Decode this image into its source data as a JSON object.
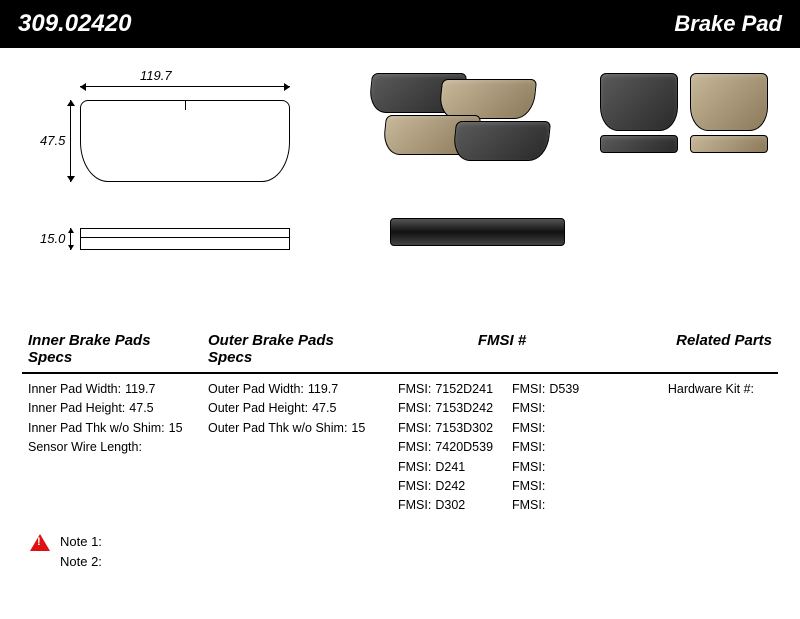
{
  "header": {
    "part_number": "309.02420",
    "title": "Brake Pad"
  },
  "dimensions": {
    "width": "119.7",
    "height": "47.5",
    "thickness": "15.0"
  },
  "sections": {
    "inner_header": "Inner Brake Pads Specs",
    "outer_header": "Outer Brake Pads Specs",
    "fmsi_header": "FMSI #",
    "related_header": "Related Parts"
  },
  "inner_specs": [
    {
      "label": "Inner Pad Width:",
      "value": "119.7"
    },
    {
      "label": "Inner Pad Height:",
      "value": "47.5"
    },
    {
      "label": "Inner Pad Thk w/o Shim:",
      "value": "15"
    },
    {
      "label": "Sensor Wire Length:",
      "value": ""
    }
  ],
  "outer_specs": [
    {
      "label": "Outer Pad Width:",
      "value": "119.7"
    },
    {
      "label": "Outer Pad Height:",
      "value": "47.5"
    },
    {
      "label": "Outer Pad Thk w/o Shim:",
      "value": "15"
    }
  ],
  "fmsi_left": [
    {
      "label": "FMSI:",
      "value": "7152D241"
    },
    {
      "label": "FMSI:",
      "value": "7153D242"
    },
    {
      "label": "FMSI:",
      "value": "7153D302"
    },
    {
      "label": "FMSI:",
      "value": "7420D539"
    },
    {
      "label": "FMSI:",
      "value": "D241"
    },
    {
      "label": "FMSI:",
      "value": "D242"
    },
    {
      "label": "FMSI:",
      "value": "D302"
    }
  ],
  "fmsi_right": [
    {
      "label": "FMSI:",
      "value": "D539"
    },
    {
      "label": "FMSI:",
      "value": ""
    },
    {
      "label": "FMSI:",
      "value": ""
    },
    {
      "label": "FMSI:",
      "value": ""
    },
    {
      "label": "FMSI:",
      "value": ""
    },
    {
      "label": "FMSI:",
      "value": ""
    },
    {
      "label": "FMSI:",
      "value": ""
    }
  ],
  "related": [
    {
      "label": "Hardware Kit #:",
      "value": ""
    }
  ],
  "notes": {
    "note1_label": "Note 1:",
    "note1_value": "",
    "note2_label": "Note 2:",
    "note2_value": ""
  }
}
